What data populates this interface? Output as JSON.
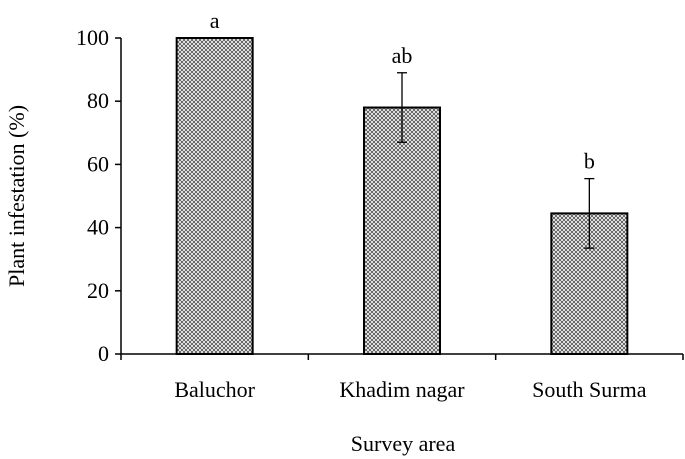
{
  "chart_data": {
    "type": "bar",
    "categories": [
      "Baluchor",
      "Khadim nagar",
      "South Surma"
    ],
    "values": [
      100,
      78,
      44.5
    ],
    "error_bars": [
      0,
      11,
      11
    ],
    "significance_labels": [
      "a",
      "ab",
      "b"
    ],
    "xlabel": "Survey area",
    "ylabel": "Plant infestation (%)",
    "ylim": [
      0,
      100
    ],
    "yticks": [
      "0",
      "20",
      "40",
      "60",
      "80",
      "100"
    ],
    "grid": false,
    "legend": "none",
    "bar_fill": "crosshatch"
  },
  "colors": {
    "bar_stroke": "#000000",
    "bar_pattern_bg": "#ffffff",
    "bar_pattern_line": "#444444"
  }
}
